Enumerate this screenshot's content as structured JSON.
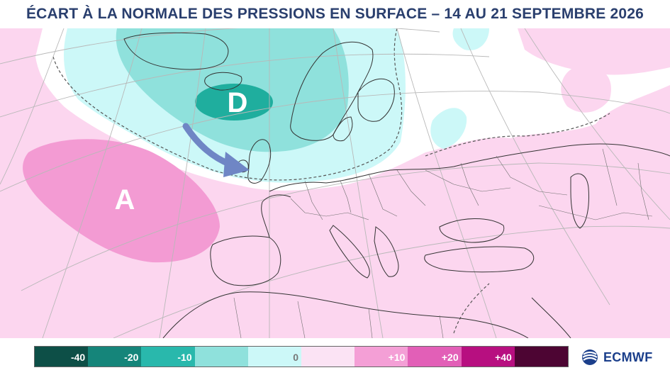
{
  "title": "ÉCART À LA NORMALE DES PRESSIONS EN SURFACE – 14 AU 21 SEPTEMBRE 2026",
  "map": {
    "low_label": "D",
    "high_label": "A",
    "low_color": "#1fae9e",
    "high_color": "#f39bd3",
    "background_positive": "#fcd6ef",
    "background_near_zero": "#ffffff"
  },
  "legend": {
    "segments": [
      {
        "color": "#0d4f47",
        "label": "-40"
      },
      {
        "color": "#15857a",
        "label": "-20"
      },
      {
        "color": "#29b8ac",
        "label": "-10"
      },
      {
        "color": "#8fe1dc",
        "label": ""
      },
      {
        "color": "#ccf8f8",
        "label": "0"
      },
      {
        "color": "#fbe3f4",
        "label": ""
      },
      {
        "color": "#f49fd6",
        "label": "+10"
      },
      {
        "color": "#e25fb7",
        "label": "+20"
      },
      {
        "color": "#b70f80",
        "label": "+40"
      },
      {
        "color": "#4d0533",
        "label": ""
      }
    ]
  },
  "logo": {
    "text": "ECMWF"
  }
}
